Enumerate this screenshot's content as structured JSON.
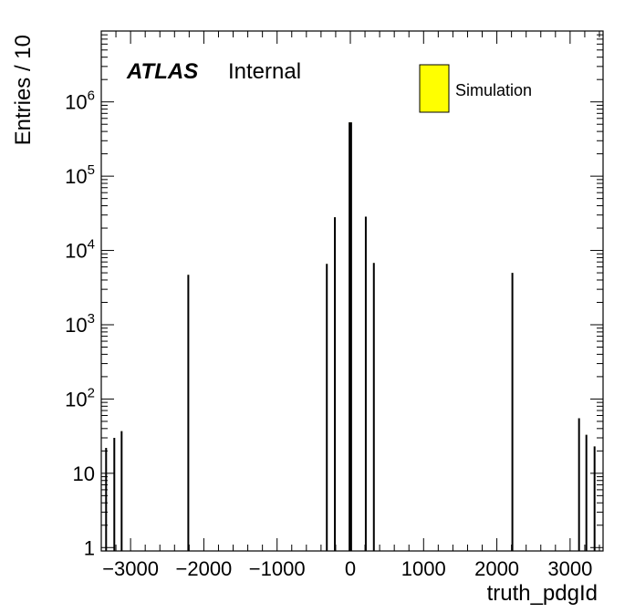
{
  "chart_data": {
    "type": "bar",
    "xlabel": "truth_pdgId",
    "ylabel": "Entries / 10",
    "xlim": [
      -3400,
      3450
    ],
    "ylim": [
      0.9,
      9000000
    ],
    "log_y": true,
    "grid": false,
    "label_main": "ATLAS",
    "label_sub": "Internal",
    "legend": {
      "position": "top-right",
      "entries": [
        {
          "label": "Simulation",
          "color": "#ffff00"
        }
      ]
    },
    "x_ticks": [
      {
        "value": -3000,
        "label": "−3000"
      },
      {
        "value": -2000,
        "label": "−2000"
      },
      {
        "value": -1000,
        "label": "−1000"
      },
      {
        "value": 0,
        "label": "0"
      },
      {
        "value": 1000,
        "label": "1000"
      },
      {
        "value": 2000,
        "label": "2000"
      },
      {
        "value": 3000,
        "label": "3000"
      }
    ],
    "y_ticks": [
      {
        "value": 1,
        "base": "1",
        "exp": ""
      },
      {
        "value": 10,
        "base": "10",
        "exp": ""
      },
      {
        "value": 100,
        "base": "10",
        "exp": "2"
      },
      {
        "value": 1000,
        "base": "10",
        "exp": "3"
      },
      {
        "value": 10000,
        "base": "10",
        "exp": "4"
      },
      {
        "value": 100000,
        "base": "10",
        "exp": "5"
      },
      {
        "value": 1000000,
        "base": "10",
        "exp": "6"
      }
    ],
    "bins": [
      {
        "x": -3334,
        "y": 22
      },
      {
        "x": -3222,
        "y": 30
      },
      {
        "x": -3122,
        "y": 37
      },
      {
        "x": -2212,
        "y": 4700
      },
      {
        "x": -321,
        "y": 6600
      },
      {
        "x": -211,
        "y": 28000
      },
      {
        "x": -11,
        "y": 530000
      },
      {
        "x": 0,
        "y": 100000
      },
      {
        "x": 11,
        "y": 530000
      },
      {
        "x": 211,
        "y": 28500
      },
      {
        "x": 321,
        "y": 6800
      },
      {
        "x": 2212,
        "y": 5000
      },
      {
        "x": 3122,
        "y": 55
      },
      {
        "x": 3222,
        "y": 33
      },
      {
        "x": 3334,
        "y": 23
      }
    ],
    "fill_color": "#ffff00",
    "line_color": "#000000"
  }
}
